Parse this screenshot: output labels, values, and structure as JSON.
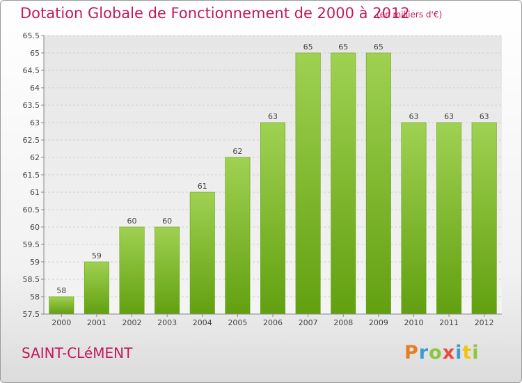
{
  "header": {
    "title": "Dotation Globale de Fonctionnement de 2000 à 2012",
    "unit": "(en milliers d'€)"
  },
  "footer": {
    "commune": "SAINT-CLéMENT",
    "logo": "Proxiti",
    "logo_colors": [
      "#e67e22",
      "#3d9bd6",
      "#8cc63f",
      "#e74c3c",
      "#3d9bd6",
      "#f1c40f",
      "#8cc63f"
    ]
  },
  "chart_data": {
    "type": "bar",
    "categories": [
      "2000",
      "2001",
      "2002",
      "2003",
      "2004",
      "2005",
      "2006",
      "2007",
      "2008",
      "2009",
      "2010",
      "2011",
      "2012"
    ],
    "values": [
      58,
      59,
      60,
      60,
      61,
      62,
      63,
      65,
      65,
      65,
      63,
      63,
      63
    ],
    "data_labels": [
      "58",
      "59",
      "60",
      "60",
      "61",
      "62",
      "63",
      "65",
      "65",
      "65",
      "63",
      "63",
      "63"
    ],
    "yticks": [
      "57.5",
      "58",
      "58.5",
      "59",
      "59.5",
      "60",
      "60.5",
      "61",
      "61.5",
      "62",
      "62.5",
      "63",
      "63.5",
      "64",
      "64.5",
      "65",
      "65.5"
    ],
    "ylim": [
      57.5,
      65.5
    ],
    "grid": true,
    "bar_color": "#8cc63f",
    "bar_color_dark": "#6aa30f"
  }
}
